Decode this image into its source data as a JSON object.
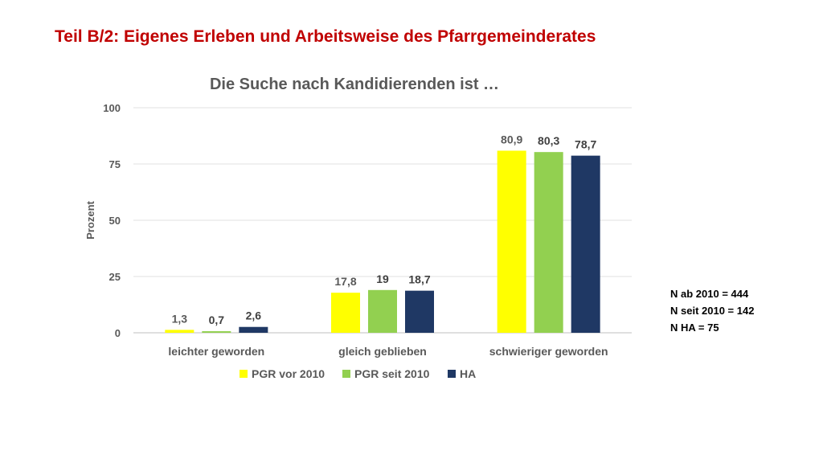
{
  "slide": {
    "title": "Teil B/2: Eigenes Erleben und Arbeitsweise des Pfarrgemeinderates",
    "notes": [
      "N ab 2010 = 444",
      "N seit 2010 = 142",
      "N HA = 75"
    ]
  },
  "chart_data": {
    "type": "bar",
    "title": "Die Suche nach Kandidierenden ist …",
    "xlabel": "",
    "ylabel": "Prozent",
    "ylim": [
      0,
      100
    ],
    "yticks": [
      0,
      25,
      50,
      75,
      100
    ],
    "grid": true,
    "legend_position": "bottom",
    "categories": [
      "leichter geworden",
      "gleich geblieben",
      "schwieriger geworden"
    ],
    "series": [
      {
        "name": "PGR vor 2010",
        "color": "#ffff00",
        "values": [
          1.3,
          17.8,
          80.9
        ],
        "labels": [
          "1,3",
          "17,8",
          "80,9"
        ],
        "label_color": "#595959"
      },
      {
        "name": "PGR seit 2010",
        "color": "#92d050",
        "values": [
          0.7,
          19,
          80.3
        ],
        "labels": [
          "0,7",
          "19",
          "80,3"
        ],
        "label_color": "#404040"
      },
      {
        "name": "HA",
        "color": "#1f3864",
        "values": [
          2.6,
          18.7,
          78.7
        ],
        "labels": [
          "2,6",
          "18,7",
          "78,7"
        ],
        "label_color": "#404040"
      }
    ]
  }
}
